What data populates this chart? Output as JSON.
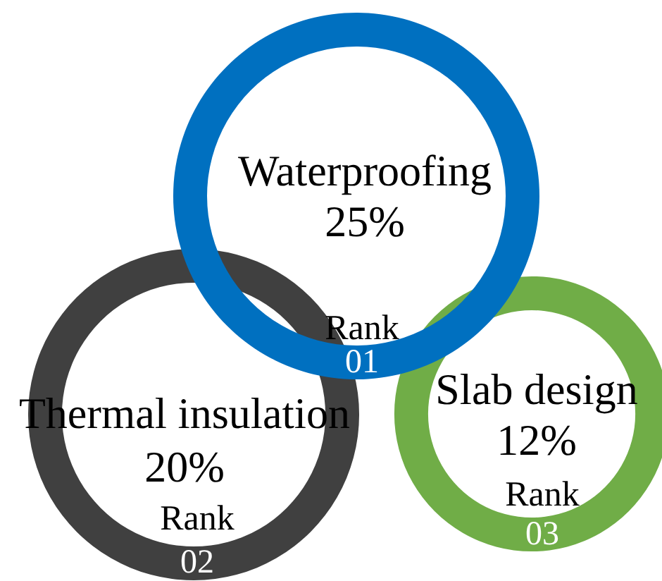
{
  "chart_data": {
    "type": "other",
    "categories": [
      "Waterproofing",
      "Thermal insulation",
      "Slab design"
    ],
    "values": [
      25,
      20,
      12
    ],
    "value_labels": [
      "25%",
      "20%",
      "12%"
    ],
    "colors": [
      "#0070c0",
      "#404040",
      "#70ad47"
    ],
    "annotations": [
      {
        "text": "Rank",
        "x": "Waterproofing"
      },
      {
        "text": "01",
        "x": "Waterproofing"
      },
      {
        "text": "Rank",
        "x": "Thermal insulation"
      },
      {
        "text": "02",
        "x": "Thermal insulation"
      },
      {
        "text": "Rank",
        "x": "Slab design"
      },
      {
        "text": "03",
        "x": "Slab design"
      }
    ]
  }
}
